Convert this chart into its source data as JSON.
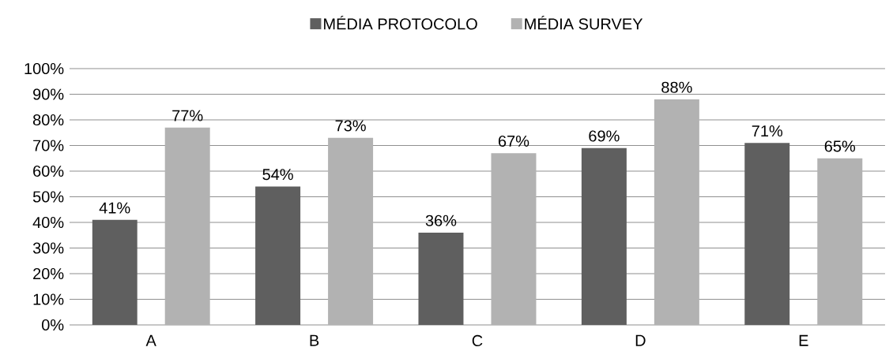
{
  "chart_data": {
    "type": "bar",
    "categories": [
      "A",
      "B",
      "C",
      "D",
      "E"
    ],
    "series": [
      {
        "name": "MÉDIA PROTOCOLO",
        "color": "#5f5f5f",
        "values": [
          41,
          54,
          36,
          69,
          71
        ],
        "value_labels": [
          "41%",
          "54%",
          "36%",
          "69%",
          "71%"
        ]
      },
      {
        "name": "MÉDIA SURVEY",
        "color": "#b2b2b2",
        "values": [
          77,
          73,
          67,
          88,
          65
        ],
        "value_labels": [
          "77%",
          "73%",
          "67%",
          "88%",
          "65%"
        ]
      }
    ],
    "ylim": [
      0,
      100
    ],
    "yticks": [
      {
        "value": 0,
        "label": "0%"
      },
      {
        "value": 10,
        "label": "10%"
      },
      {
        "value": 20,
        "label": "20%"
      },
      {
        "value": 30,
        "label": "30%"
      },
      {
        "value": 40,
        "label": "40%"
      },
      {
        "value": 50,
        "label": "50%"
      },
      {
        "value": 60,
        "label": "60%"
      },
      {
        "value": 70,
        "label": "70%"
      },
      {
        "value": 80,
        "label": "80%"
      },
      {
        "value": 90,
        "label": "90%"
      },
      {
        "value": 100,
        "label": "100%"
      }
    ],
    "grid": "y",
    "legend": "top"
  }
}
